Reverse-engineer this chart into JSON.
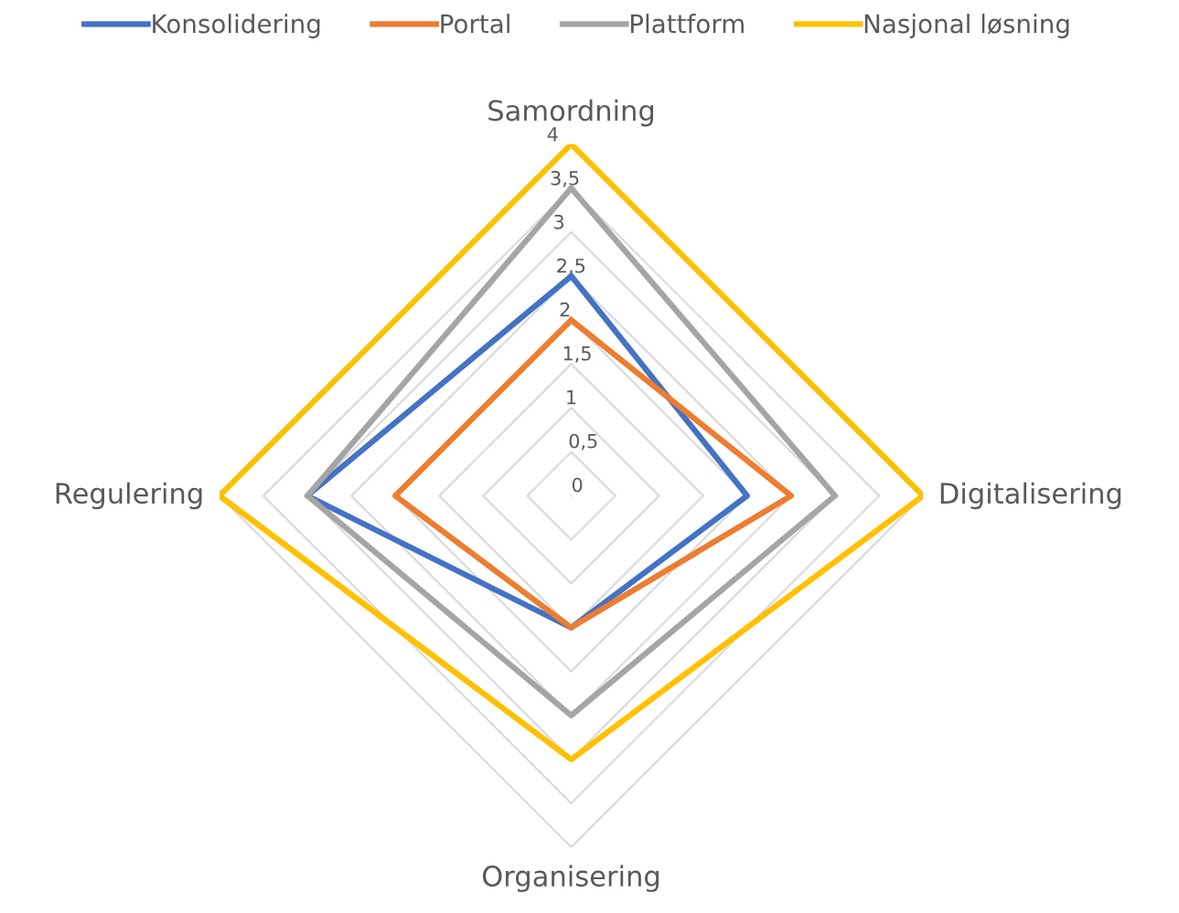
{
  "chart_data": {
    "type": "radar",
    "categories": [
      "Samordning",
      "Digitalisering",
      "Organisering",
      "Regulering"
    ],
    "series": [
      {
        "name": "Konsolidering",
        "color": "#4472c4",
        "values": [
          2.5,
          2,
          1.5,
          3
        ]
      },
      {
        "name": "Portal",
        "color": "#ed7d31",
        "values": [
          2,
          2.5,
          1.5,
          2
        ]
      },
      {
        "name": "Plattform",
        "color": "#a5a5a5",
        "values": [
          3.5,
          3,
          2.5,
          3
        ]
      },
      {
        "name": "Nasjonal løsning",
        "color": "#ffc000",
        "values": [
          4,
          4,
          3,
          4
        ]
      }
    ],
    "ylim": [
      0,
      4
    ],
    "yticks": [
      0,
      {
        "value": 0.5,
        "label": "0,5"
      },
      1,
      {
        "value": 1.5,
        "label": "1,5"
      },
      2,
      {
        "value": 2.5,
        "label": "2,5"
      },
      3,
      {
        "value": 3.5,
        "label": "3,5"
      },
      4
    ],
    "grid": true,
    "legend": "top",
    "marker": "none",
    "line_style": "solid"
  }
}
